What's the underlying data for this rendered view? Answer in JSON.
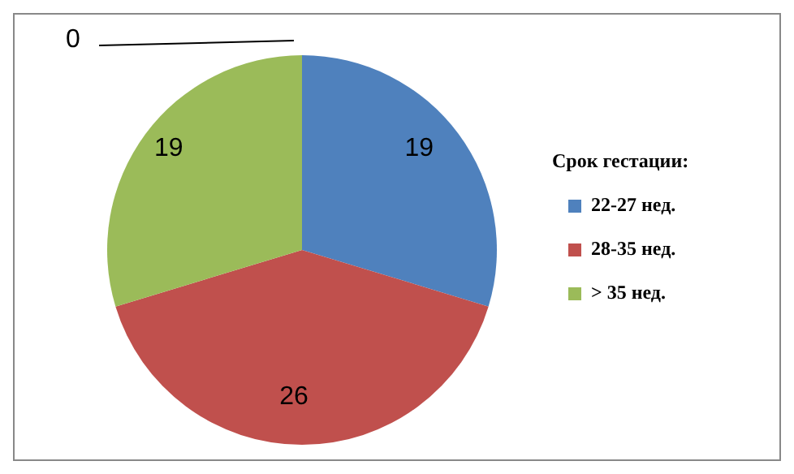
{
  "chart_data": {
    "type": "pie",
    "legend_title": "Срок гестации:",
    "categories": [
      "22-27 нед.",
      "28-35 нед.",
      "> 35 нед."
    ],
    "values": [
      19,
      26,
      19
    ],
    "colors": [
      "#4f81bd",
      "#c0504d",
      "#9bbb59"
    ],
    "annotations": [
      "0"
    ],
    "data_labels": true,
    "legend": "right"
  }
}
